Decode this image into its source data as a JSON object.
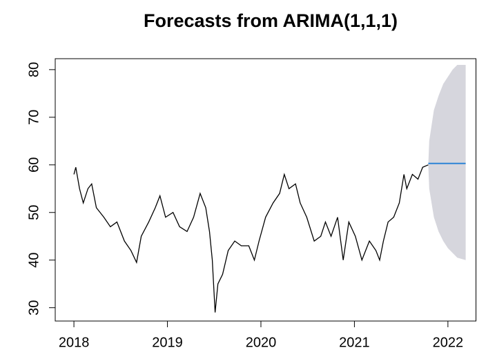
{
  "chart_data": {
    "type": "line",
    "title": "Forecasts from ARIMA(1,1,1)",
    "x": [
      2018.0,
      2018.02,
      2018.06,
      2018.1,
      2018.15,
      2018.19,
      2018.24,
      2018.32,
      2018.39,
      2018.46,
      2018.54,
      2018.61,
      2018.67,
      2018.72,
      2018.8,
      2018.87,
      2018.92,
      2018.98,
      2019.06,
      2019.13,
      2019.21,
      2019.28,
      2019.35,
      2019.41,
      2019.45,
      2019.48,
      2019.51,
      2019.54,
      2019.59,
      2019.65,
      2019.72,
      2019.79,
      2019.87,
      2019.93,
      2019.98,
      2020.05,
      2020.13,
      2020.2,
      2020.25,
      2020.3,
      2020.37,
      2020.42,
      2020.49,
      2020.57,
      2020.64,
      2020.69,
      2020.75,
      2020.82,
      2020.88,
      2020.94,
      2021.01,
      2021.08,
      2021.16,
      2021.23,
      2021.27,
      2021.31,
      2021.36,
      2021.42,
      2021.48,
      2021.53,
      2021.56,
      2021.62,
      2021.68,
      2021.73,
      2021.79
    ],
    "values": [
      58,
      59.5,
      55,
      52,
      55,
      56,
      51,
      49,
      47,
      48,
      44,
      42,
      39.5,
      45,
      48,
      51,
      53.5,
      49,
      50,
      47,
      46,
      49,
      54,
      51,
      46,
      40,
      29,
      35,
      37,
      42,
      44,
      43,
      43,
      40,
      44,
      49,
      52,
      54,
      58,
      55,
      56,
      52,
      49,
      44,
      45,
      48,
      45,
      49,
      40,
      48,
      45,
      40,
      44,
      42,
      40,
      44,
      48,
      49,
      52,
      58,
      55,
      58,
      57,
      59.5,
      60
    ],
    "color": "#000000",
    "forecast": {
      "x": [
        2021.79,
        2021.8,
        2021.85,
        2021.9,
        2021.95,
        2022.0,
        2022.05,
        2022.1,
        2022.19
      ],
      "mean": [
        60.3,
        60.3,
        60.3,
        60.3,
        60.3,
        60.3,
        60.3,
        60.3,
        60.3
      ],
      "lower": [
        60,
        55,
        49,
        46,
        44,
        42.5,
        41.5,
        40.5,
        40
      ],
      "upper": [
        60,
        65,
        71.5,
        74.5,
        77,
        78.5,
        80,
        81,
        81
      ],
      "color": "#2b83d6",
      "band_color": "#d6d6dd"
    },
    "xlim": [
      2017.8,
      2022.3
    ],
    "ylim": [
      27.2,
      82.3
    ],
    "xticks": [
      2018,
      2019,
      2020,
      2021,
      2022
    ],
    "yticks": [
      30,
      40,
      50,
      60,
      70,
      80
    ]
  }
}
